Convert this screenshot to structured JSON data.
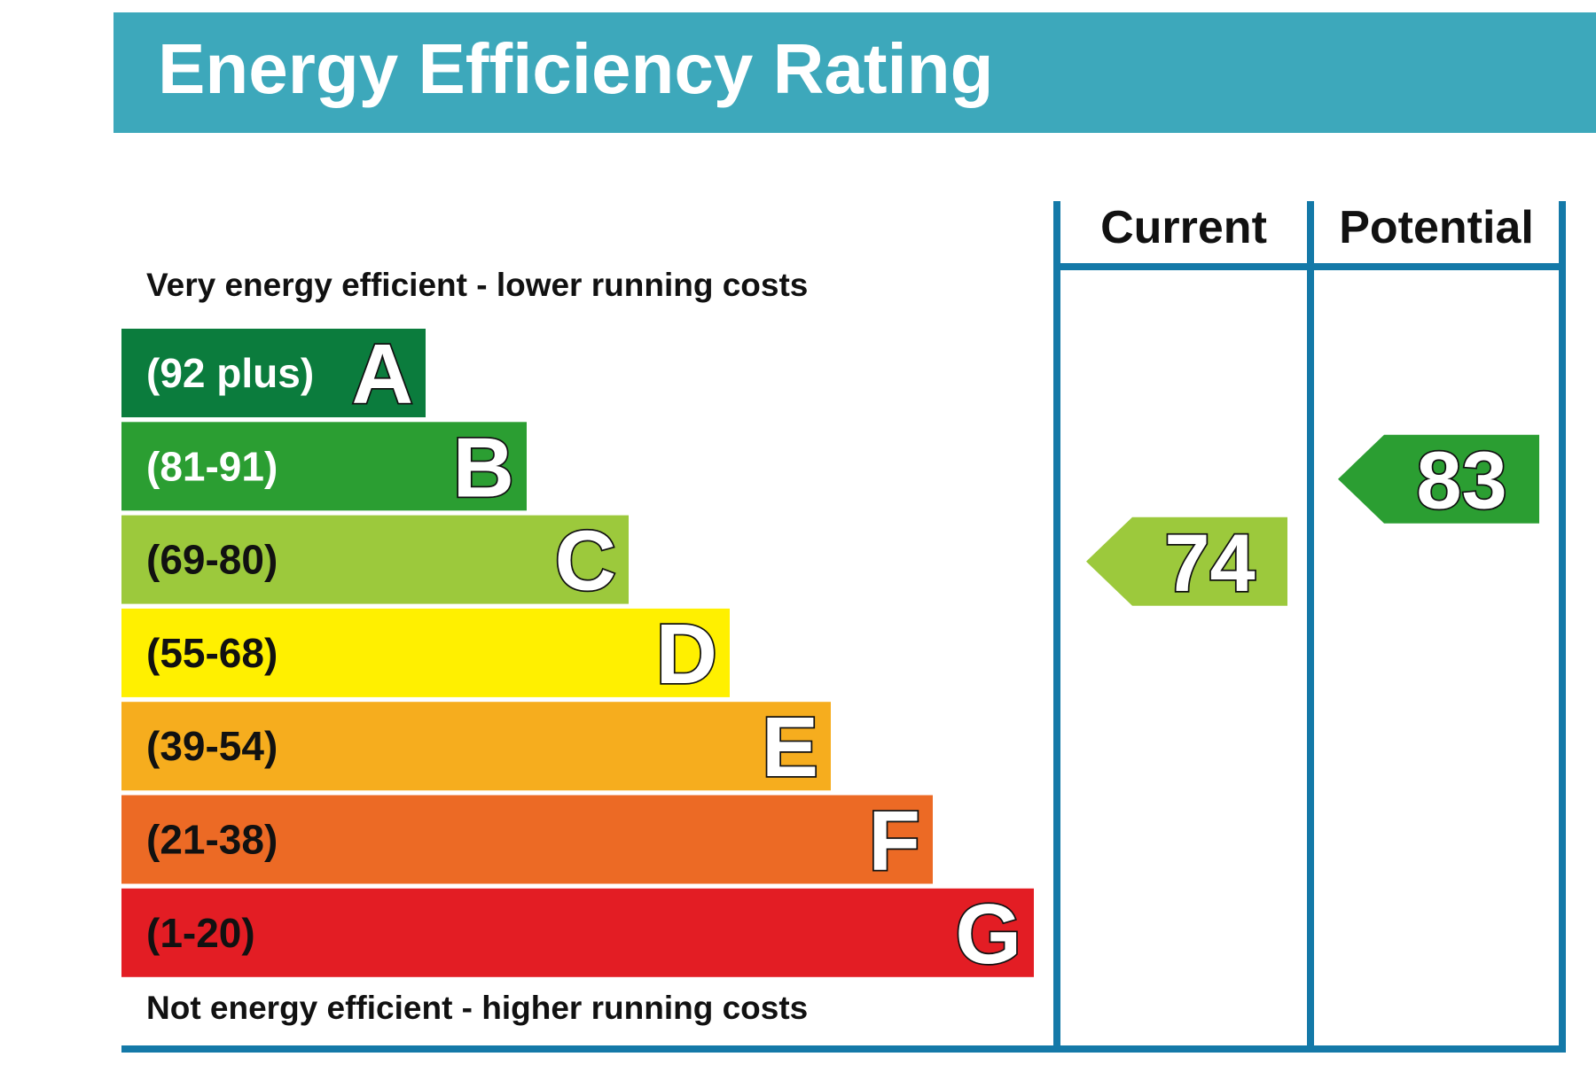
{
  "header": {
    "title": "Energy Efficiency Rating",
    "color": "#3da8bb"
  },
  "chart_data": {
    "type": "bar",
    "title": "Energy Efficiency Rating",
    "top_note": "Very energy efficient - lower running costs",
    "bottom_note": "Not energy efficient - higher running costs",
    "columns": [
      "Current",
      "Potential"
    ],
    "frame_color": "#1479a8",
    "bands": [
      {
        "letter": "A",
        "range": "(92 plus)",
        "min": 92,
        "max": 100,
        "color": "#0b7c3d",
        "text_color": "#ffffff"
      },
      {
        "letter": "B",
        "range": "(81-91)",
        "min": 81,
        "max": 91,
        "color": "#2b9e32",
        "text_color": "#ffffff"
      },
      {
        "letter": "C",
        "range": "(69-80)",
        "min": 69,
        "max": 80,
        "color": "#9cc93c",
        "text_color": "#111111"
      },
      {
        "letter": "D",
        "range": "(55-68)",
        "min": 55,
        "max": 68,
        "color": "#fff000",
        "text_color": "#111111"
      },
      {
        "letter": "E",
        "range": "(39-54)",
        "min": 39,
        "max": 54,
        "color": "#f6ad1e",
        "text_color": "#111111"
      },
      {
        "letter": "F",
        "range": "(21-38)",
        "min": 21,
        "max": 38,
        "color": "#ec6a25",
        "text_color": "#111111"
      },
      {
        "letter": "G",
        "range": "(1-20)",
        "min": 1,
        "max": 20,
        "color": "#e31d24",
        "text_color": "#111111"
      }
    ],
    "ratings": [
      {
        "column": "Current",
        "value": 74,
        "band": "C",
        "color": "#9cc93c"
      },
      {
        "column": "Potential",
        "value": 83,
        "band": "B",
        "color": "#2b9e32"
      }
    ]
  }
}
